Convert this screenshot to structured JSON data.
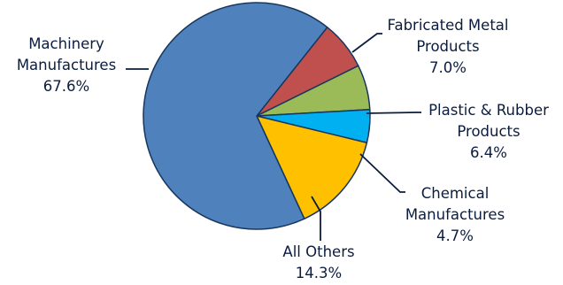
{
  "chart_data": {
    "type": "pie",
    "title": "",
    "slices": [
      {
        "label": [
          "Fabricated Metal",
          "Products"
        ],
        "pct_label": "7.0%",
        "value": 7.0,
        "color": "#c0504d"
      },
      {
        "label": [
          "Plastic & Rubber",
          "Products"
        ],
        "pct_label": "6.4%",
        "value": 6.4,
        "color": "#9bbb59"
      },
      {
        "label": [
          "Chemical",
          "Manufactures"
        ],
        "pct_label": "4.7%",
        "value": 4.7,
        "color": "#00b0f0"
      },
      {
        "label": [
          "All Others"
        ],
        "pct_label": "14.3%",
        "value": 14.3,
        "color": "#ffc000"
      },
      {
        "label": [
          "Machinery",
          "Manufactures"
        ],
        "pct_label": "67.6%",
        "value": 67.6,
        "color": "#4f81bd"
      }
    ],
    "start_angle_deg": 38.5,
    "direction": "clockwise"
  }
}
